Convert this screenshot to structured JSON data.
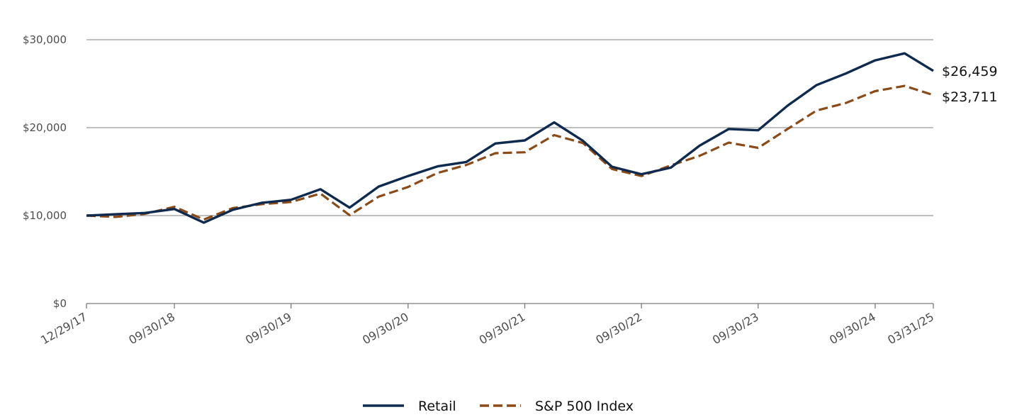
{
  "chart_data": {
    "type": "line",
    "title": "",
    "xlabel": "",
    "ylabel": "",
    "ylim": [
      0,
      30000
    ],
    "yticks": [
      0,
      10000,
      20000,
      30000
    ],
    "ytick_labels": [
      "$0",
      "$10,000",
      "$20,000",
      "$30,000"
    ],
    "grid": true,
    "legend_position": "bottom-center",
    "x_start": "12/29/17",
    "x_end": "03/31/25",
    "xtick_labels": [
      "12/29/17",
      "09/30/18",
      "09/30/19",
      "09/30/20",
      "09/30/21",
      "09/30/22",
      "09/30/23",
      "09/30/24",
      "03/31/25"
    ],
    "x": [
      "12/29/17",
      "03/31/18",
      "06/30/18",
      "09/30/18",
      "12/31/18",
      "03/31/19",
      "06/30/19",
      "09/30/19",
      "12/31/19",
      "03/31/20",
      "06/30/20",
      "09/30/20",
      "12/31/20",
      "03/31/21",
      "06/30/21",
      "09/30/21",
      "12/31/21",
      "03/31/22",
      "06/30/22",
      "09/30/22",
      "12/31/22",
      "03/31/23",
      "06/30/23",
      "09/30/23",
      "12/31/23",
      "03/31/24",
      "06/30/24",
      "09/30/24",
      "12/31/24",
      "03/31/25"
    ],
    "series": [
      {
        "name": "Retail",
        "color": "#0f2a4f",
        "dash": "solid",
        "end_label": "$26,459",
        "values": [
          10000,
          10150,
          10300,
          10750,
          9200,
          10650,
          11450,
          11800,
          13000,
          10900,
          13300,
          14500,
          15600,
          16100,
          18200,
          18550,
          20600,
          18500,
          15550,
          14700,
          15450,
          17950,
          19850,
          19700,
          22500,
          24850,
          26150,
          27650,
          28450,
          26459
        ]
      },
      {
        "name": "S&P 500 Index",
        "color": "#8b4a16",
        "dash": "dashed",
        "end_label": "$23,711",
        "values": [
          10000,
          9850,
          10200,
          11000,
          9550,
          10850,
          11300,
          11550,
          12500,
          10050,
          12150,
          13250,
          14850,
          15750,
          17100,
          17200,
          19150,
          18250,
          15300,
          14500,
          15700,
          16800,
          18300,
          17700,
          19850,
          21950,
          22800,
          24150,
          24750,
          23711
        ]
      }
    ]
  }
}
